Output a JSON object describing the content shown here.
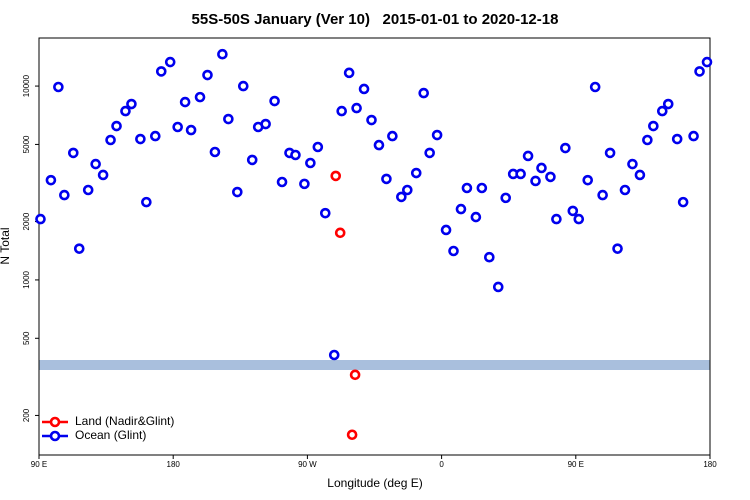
{
  "chart_data": {
    "type": "scatter",
    "title": "55S-50S January (Ver 10)   2015-01-01 to 2020-12-18",
    "x_label": "Longitude (deg E)",
    "y_label": "N Total",
    "xlim": [
      90,
      540
    ],
    "ylim": [
      125,
      17700
    ],
    "ylog": true,
    "xticks": [
      {
        "value": 90,
        "label": "90 E"
      },
      180,
      {
        "value": 270,
        "label": "90 W"
      },
      {
        "value": 360,
        "label": "0"
      },
      {
        "value": 450,
        "label": "90 E"
      },
      {
        "value": 540,
        "label": "180"
      }
    ],
    "yticks": [
      200,
      500,
      1000,
      2000,
      5000,
      10000
    ],
    "legend": "bottom-left",
    "series": [
      {
        "name": "Land (Nadir&Glint)",
        "color": "#ff0000",
        "x": [
          289,
          292,
          302,
          300
        ],
        "values": [
          3440,
          1750,
          324,
          159
        ]
      },
      {
        "name": "Ocean (Glint)",
        "color": "#0000ee",
        "x": [
          91,
          98,
          103,
          107,
          113,
          117,
          123,
          128,
          133,
          138,
          142,
          148,
          152,
          158,
          162,
          168,
          172,
          178,
          183,
          188,
          192,
          198,
          203,
          208,
          213,
          217,
          223,
          227,
          233,
          237,
          242,
          248,
          253,
          258,
          262,
          268,
          272,
          277,
          282,
          288,
          293,
          298,
          303,
          308,
          313,
          318,
          323,
          327,
          333,
          337,
          343,
          348,
          352,
          357,
          363,
          368,
          373,
          377,
          383,
          387,
          392,
          398,
          403,
          408,
          413,
          418,
          423,
          427,
          433,
          437,
          443,
          448,
          452,
          458,
          463,
          468,
          473,
          478,
          483,
          488,
          493,
          498,
          502,
          508,
          512,
          518,
          522,
          529,
          533,
          538
        ],
        "values": [
          2060,
          3270,
          9890,
          2740,
          4520,
          1450,
          2910,
          3960,
          3480,
          5270,
          6220,
          7430,
          8080,
          5330,
          2520,
          5520,
          11900,
          13300,
          6150,
          8270,
          5930,
          8770,
          11400,
          4570,
          14600,
          6760,
          2840,
          10000,
          4160,
          6150,
          6370,
          8370,
          3200,
          4520,
          4410,
          3130,
          4010,
          4850,
          2210,
          410,
          7430,
          11700,
          7700,
          9660,
          6680,
          4960,
          3320,
          5520,
          2680,
          2910,
          3560,
          9200,
          4520,
          5590,
          1810,
          1410,
          2320,
          2980,
          2110,
          2980,
          1310,
          920,
          2650,
          3520,
          3520,
          4360,
          3240,
          3780,
          3400,
          2060,
          4790,
          2270,
          2060,
          3270,
          9890,
          2740,
          4520,
          1450,
          2910,
          3960,
          3480,
          5270,
          6220,
          7430,
          8080,
          5330,
          2520,
          5520,
          11900,
          13300
        ]
      }
    ]
  }
}
